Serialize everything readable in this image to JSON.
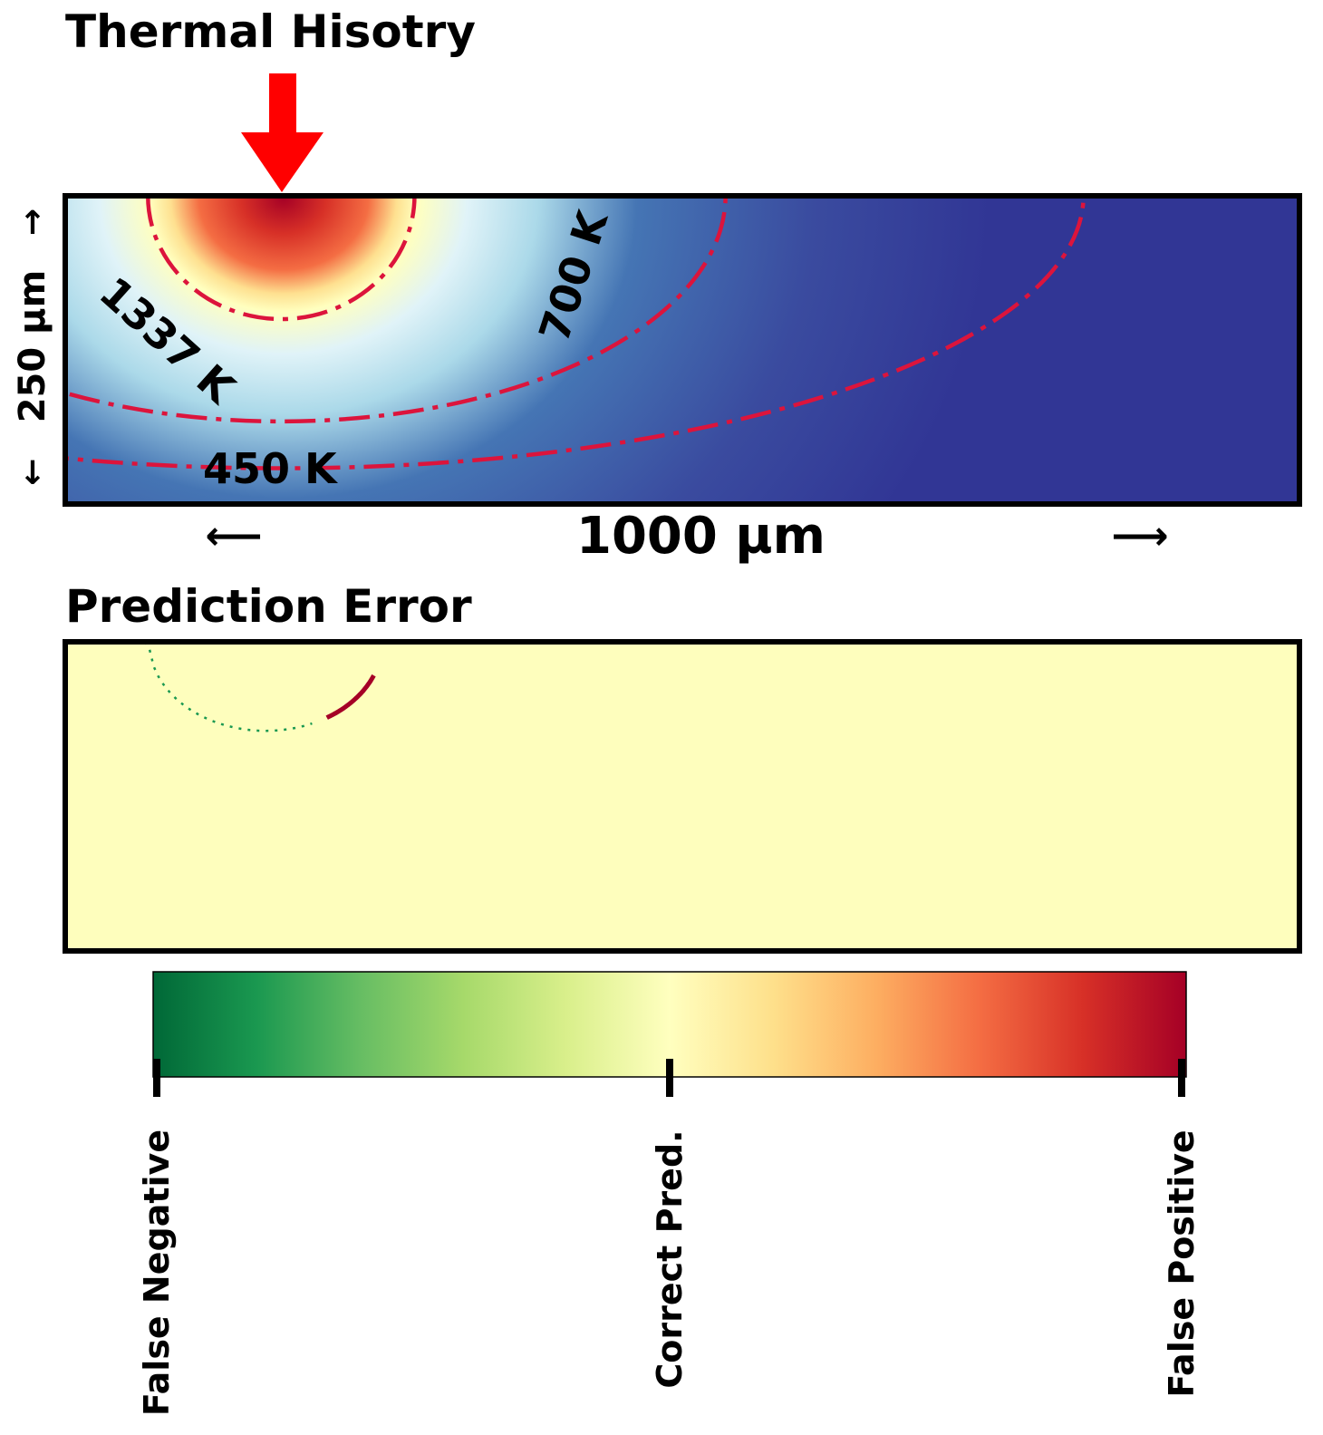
{
  "chart_data": [
    {
      "type": "heatmap",
      "title": "Thermal Hisotry",
      "xlabel": "1000 µm",
      "ylabel": "250 µm",
      "x_arrows": [
        "⟵",
        "⟶"
      ],
      "y_arrows": [
        "↓",
        "↑"
      ],
      "domain_um": {
        "width": 1000,
        "depth": 250
      },
      "heat_source_x_um": 175,
      "colormap": "RdYlBu_r",
      "contours": [
        {
          "label": "1337 K",
          "value_K": 1337,
          "radius_x_um": 108,
          "depth_um": 100
        },
        {
          "label": "700 K",
          "value_K": 700,
          "radius_x_um": 360,
          "depth_um": 183
        },
        {
          "label": "450 K",
          "value_K": 450,
          "radius_x_um": 650,
          "depth_um": 221
        }
      ]
    },
    {
      "type": "heatmap",
      "title": "Prediction Error",
      "background_class": "Correct Pred.",
      "false_negative_arc_um": {
        "from_x": 65,
        "to_x": 200,
        "max_depth": 72
      },
      "false_positive_arc_um": {
        "from_x": 212,
        "to_x": 250,
        "max_depth": 52
      },
      "colorbar": {
        "colormap": "RdYlGn_r",
        "ticks": [
          "False Negative",
          "Correct Pred.",
          "False Positive"
        ],
        "colors": [
          "#006837",
          "#1a9850",
          "#66bd63",
          "#a6d96a",
          "#d9ef8b",
          "#ffffbf",
          "#fee08b",
          "#fdae61",
          "#f46d43",
          "#d73027",
          "#a50026"
        ]
      }
    }
  ],
  "colors": {
    "arrow": "#ff0000",
    "contour": "#dc143c",
    "error_background": "#fefebd",
    "false_negative": "#1a9850",
    "false_positive": "#a50026"
  }
}
